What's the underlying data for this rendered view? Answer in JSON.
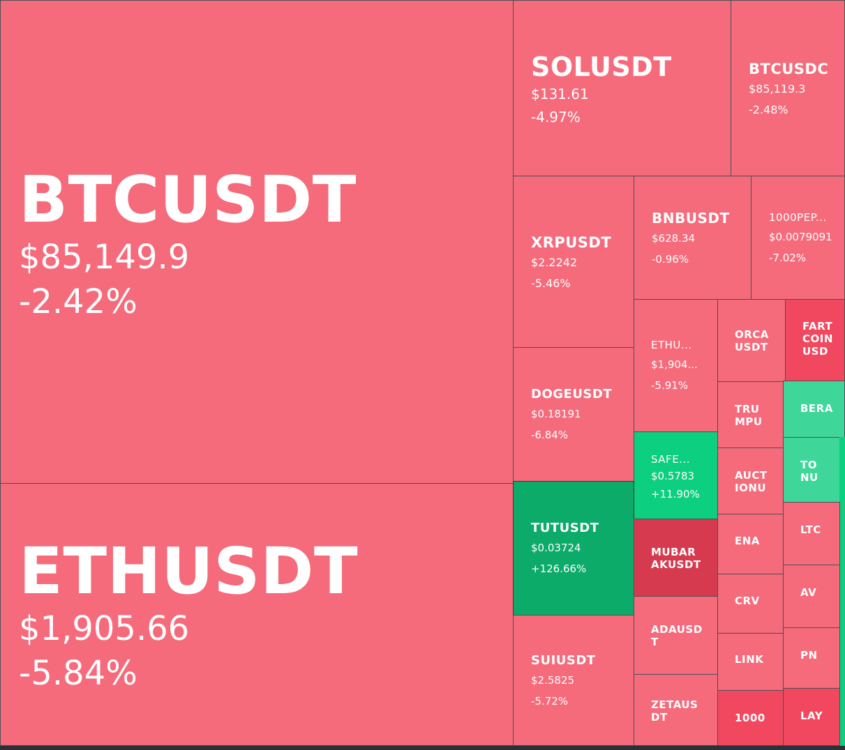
{
  "colors": {
    "down": "#f56b7b",
    "down_strong": "#f2485f",
    "down_deep": "#d63a4e",
    "up": "#0ccf7f",
    "up_strong": "#0cab6a",
    "up_light": "#3fd69a"
  },
  "tiles": {
    "btcusdt": {
      "symbol": "BTCUSDT",
      "price": "$85,149.9",
      "change": "-2.42%"
    },
    "ethusdt": {
      "symbol": "ETHUSDT",
      "price": "$1,905.66",
      "change": "-5.84%"
    },
    "solusdt": {
      "symbol": "SOLUSDT",
      "price": "$131.61",
      "change": "-4.97%"
    },
    "btcusdc": {
      "symbol": "BTCUSDC",
      "price": "$85,119.3",
      "change": "-2.48%"
    },
    "xrpusdt": {
      "symbol": "XRPUSDT",
      "price": "$2.2242",
      "change": "-5.46%"
    },
    "bnbusdt": {
      "symbol": "BNBUSDT",
      "price": "$628.34",
      "change": "-0.96%"
    },
    "pepe": {
      "symbol": "1000PEP...",
      "price": "$0.0079091",
      "change": "-7.02%"
    },
    "ethu": {
      "symbol": "ETHU...",
      "price": "$1,904...",
      "change": "-5.91%"
    },
    "orca": {
      "symbol": "ORCA\nUSDT"
    },
    "fart": {
      "symbol": "FART\nCOIN\nUSD"
    },
    "dogeusdt": {
      "symbol": "DOGEUSDT",
      "price": "$0.18191",
      "change": "-6.84%"
    },
    "trump": {
      "symbol": "TRU\nMPU"
    },
    "bera": {
      "symbol": "BERA"
    },
    "safe": {
      "symbol": "SAFE...",
      "price": "$0.5783",
      "change": "+11.90%"
    },
    "auction": {
      "symbol": "AUCT\nIONU"
    },
    "ton": {
      "symbol": "TO\nNU"
    },
    "tutusdt": {
      "symbol": "TUTUSDT",
      "price": "$0.03724",
      "change": "+126.66%"
    },
    "mubarak": {
      "symbol": "MUBAR\nAKUSDT"
    },
    "ena": {
      "symbol": "ENA"
    },
    "ltc": {
      "symbol": "LTC"
    },
    "crv": {
      "symbol": "CRV"
    },
    "avax": {
      "symbol": "AV"
    },
    "suiusdt": {
      "symbol": "SUIUSDT",
      "price": "$2.5825",
      "change": "-5.72%"
    },
    "adausdt": {
      "symbol": "ADAUSD\nT"
    },
    "link": {
      "symbol": "LINK"
    },
    "pnut": {
      "symbol": "PN"
    },
    "zeta": {
      "symbol": "ZETAUS\nDT"
    },
    "bonk": {
      "symbol": "1000"
    },
    "layer": {
      "symbol": "LAY"
    }
  }
}
